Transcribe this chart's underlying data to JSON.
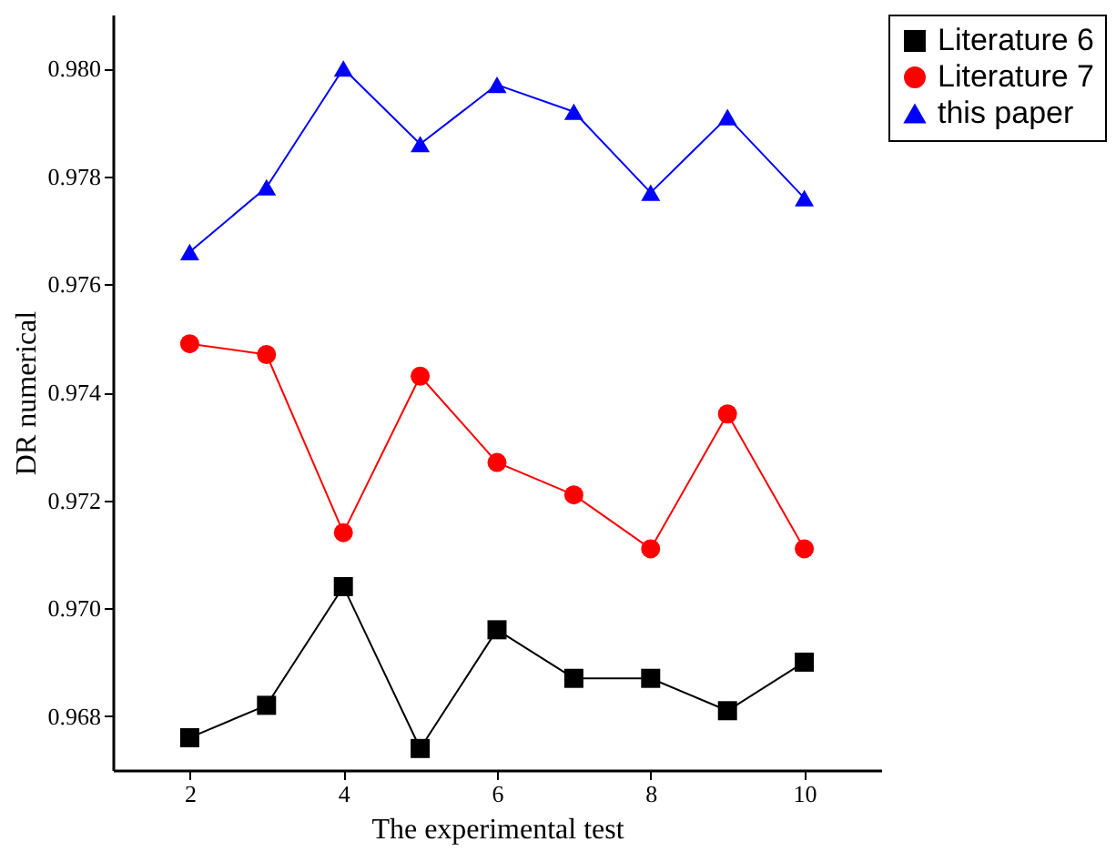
{
  "chart_data": {
    "type": "line",
    "xlabel": "The experimental test",
    "ylabel": "DR numerical",
    "x": [
      2,
      3,
      4,
      5,
      6,
      7,
      8,
      9,
      10
    ],
    "xlim": [
      1,
      11
    ],
    "xticks": [
      2,
      4,
      6,
      8,
      10
    ],
    "ylim": [
      0.967,
      0.981
    ],
    "yticks": [
      0.968,
      {
        "value": 0.97,
        "label": "0.970"
      },
      0.972,
      0.974,
      0.976,
      0.978,
      {
        "value": 0.98,
        "label": "0.980"
      }
    ],
    "grid": false,
    "legend": "right",
    "line_style": "solid",
    "series": [
      {
        "name": "Literature 6",
        "color": "#000000",
        "marker": "square",
        "values": [
          0.9676,
          0.9682,
          0.9704,
          0.9674,
          0.9696,
          0.9687,
          0.9687,
          0.9681,
          0.969
        ]
      },
      {
        "name": "Literature 7",
        "color": "#ff0000",
        "marker": "circle",
        "values": [
          0.9749,
          0.9747,
          0.9714,
          0.9743,
          0.9727,
          0.9721,
          0.9711,
          0.9736,
          0.9711
        ]
      },
      {
        "name": "this paper",
        "color": "#0000ff",
        "marker": "triangle",
        "values": [
          0.9766,
          0.9778,
          0.98,
          0.9786,
          0.9797,
          0.9792,
          0.9777,
          0.9791,
          0.9776
        ]
      }
    ]
  }
}
